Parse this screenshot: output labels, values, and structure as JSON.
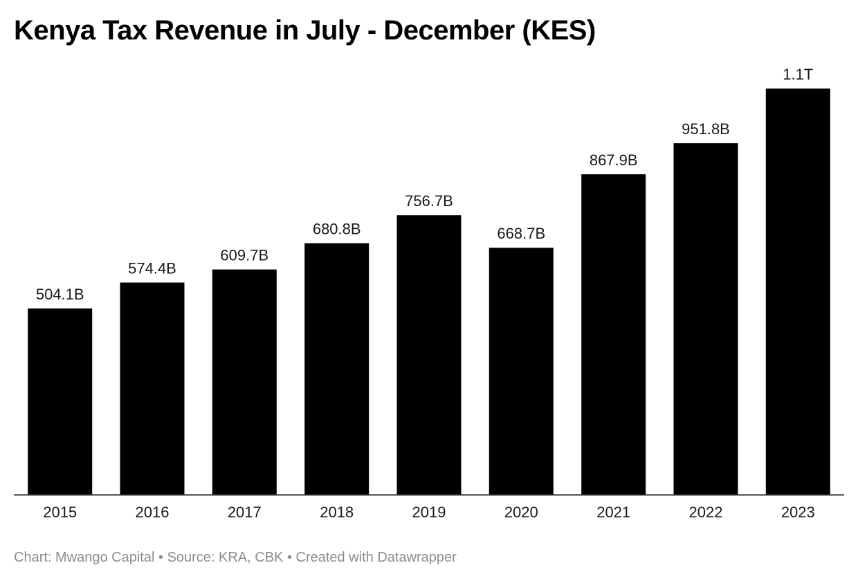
{
  "chart_data": {
    "type": "bar",
    "title": "Kenya Tax Revenue in July - December (KES)",
    "categories": [
      "2015",
      "2016",
      "2017",
      "2018",
      "2019",
      "2020",
      "2021",
      "2022",
      "2023"
    ],
    "values": [
      504.1,
      574.4,
      609.7,
      680.8,
      756.7,
      668.7,
      867.9,
      951.8,
      1100
    ],
    "value_labels": [
      "504.1B",
      "574.4B",
      "609.7B",
      "680.8B",
      "756.7B",
      "668.7B",
      "867.9B",
      "951.8B",
      "1.1T"
    ],
    "unit": "KES (billions)",
    "xlabel": "",
    "ylabel": "",
    "ylim": [
      0,
      1100
    ],
    "grid": false,
    "bar_color": "#000000"
  },
  "footer": {
    "text": "Chart: Mwango Capital • Source: KRA, CBK • Created with Datawrapper"
  }
}
